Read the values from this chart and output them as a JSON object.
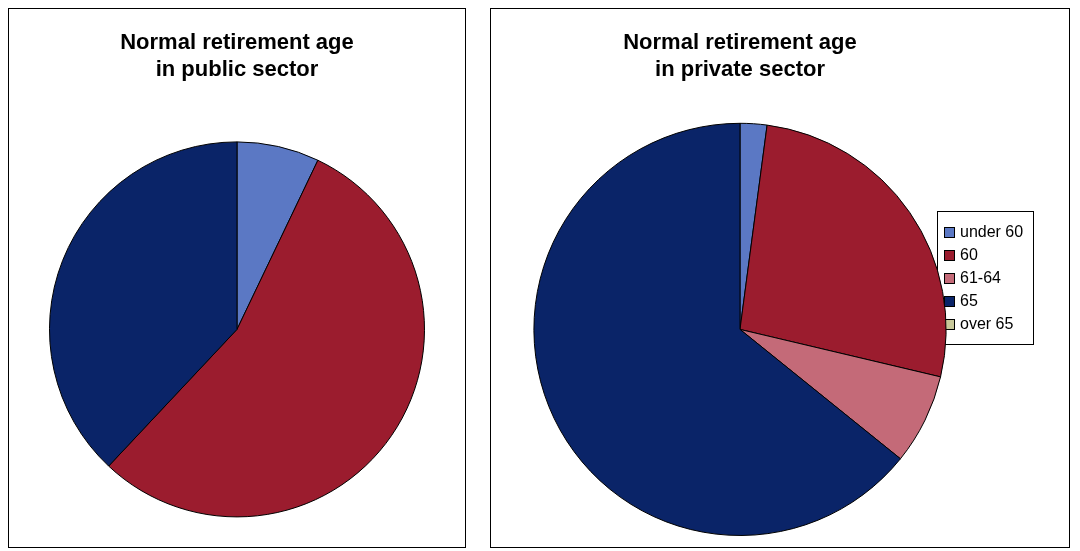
{
  "chart_data": [
    {
      "type": "pie",
      "title": "Normal retirement age\nin public sector",
      "categories": [
        null,
        null,
        null,
        null,
        null
      ],
      "values": [
        7.1,
        54.9,
        0,
        38,
        0
      ],
      "colors": [
        "#5b78c4",
        "#9b1c2e",
        "#c46a78",
        "#0a2468",
        "#c8c89a"
      ],
      "legend": false
    },
    {
      "type": "pie",
      "title": "Normal retirement age\nin private sector",
      "categories": [
        "under 60",
        "60",
        "61-64",
        "65",
        "over 65"
      ],
      "values": [
        2.1,
        26.6,
        7.1,
        64.2,
        0
      ],
      "colors": [
        "#5b78c4",
        "#9b1c2e",
        "#c46a78",
        "#0a2468",
        "#c8c89a"
      ],
      "legend": "right"
    }
  ]
}
